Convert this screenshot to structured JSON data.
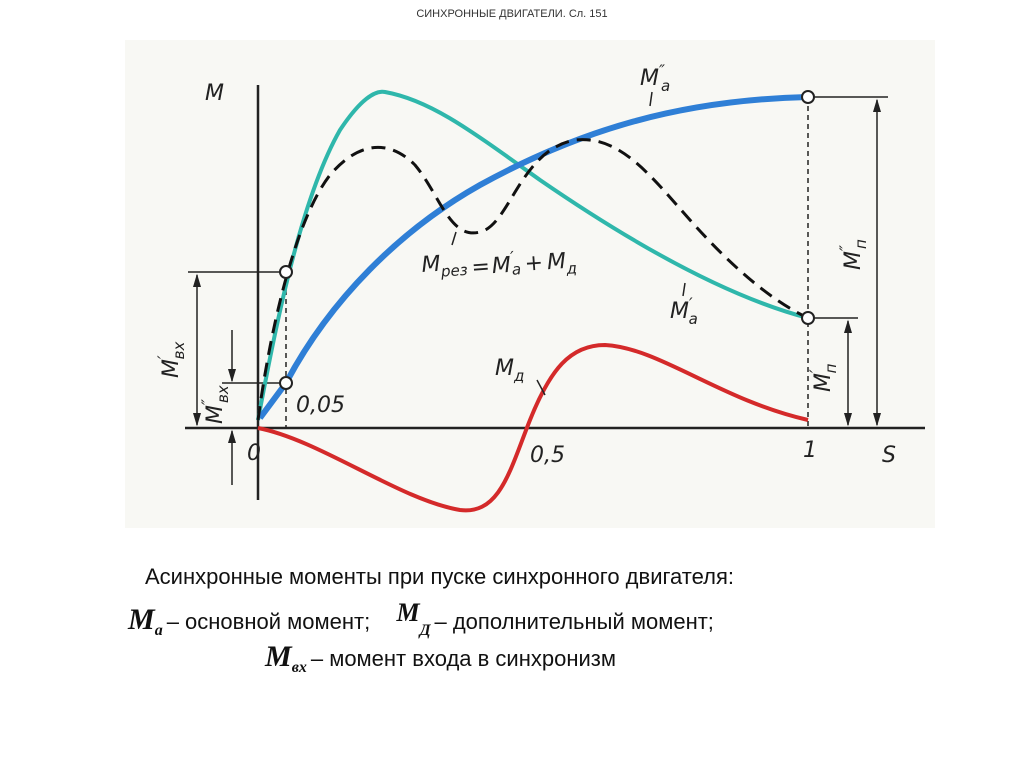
{
  "header": {
    "title": "СИНХРОННЫЕ ДВИГАТЕЛИ. Сл. 151"
  },
  "diagram": {
    "axis_labels": {
      "y": "M",
      "x": "S"
    },
    "ticks": {
      "origin": "0",
      "s005": "0,05",
      "s05": "0,5",
      "s1": "1"
    },
    "curve_labels": {
      "ma2": {
        "main": "M",
        "prime": "″",
        "sub": "a"
      },
      "ma1": {
        "main": "M",
        "prime": "′",
        "sub": "a"
      },
      "md": {
        "main": "M",
        "sub": "д"
      },
      "rez": {
        "lhs": {
          "main": "M",
          "sub": "рез"
        },
        "eq": "=",
        "t1": {
          "main": "M",
          "prime": "′",
          "sub": "a"
        },
        "plus": "+",
        "t2": {
          "main": "M",
          "sub": "д"
        }
      }
    },
    "dimension_labels": {
      "mvx1": {
        "main": "M",
        "prime": "′",
        "sub": "вх"
      },
      "mvx2": {
        "main": "M",
        "prime": "″",
        "sub": "вх"
      },
      "mp2": {
        "main": "M",
        "prime": "″",
        "sub": "п"
      },
      "mp1": {
        "main": "M",
        "prime": "′",
        "sub": "п"
      }
    }
  },
  "caption": {
    "line1": "Асинхронные моменты при пуске синхронного двигателя:",
    "items": [
      {
        "symbol": "M",
        "sub": "а",
        "text": "– основной момент;"
      },
      {
        "symbol": "M",
        "sub": "Д",
        "text": "– дополнительный момент;"
      },
      {
        "symbol": "M",
        "sub": "вх",
        "text": "– момент входа в синхронизм"
      }
    ]
  }
}
